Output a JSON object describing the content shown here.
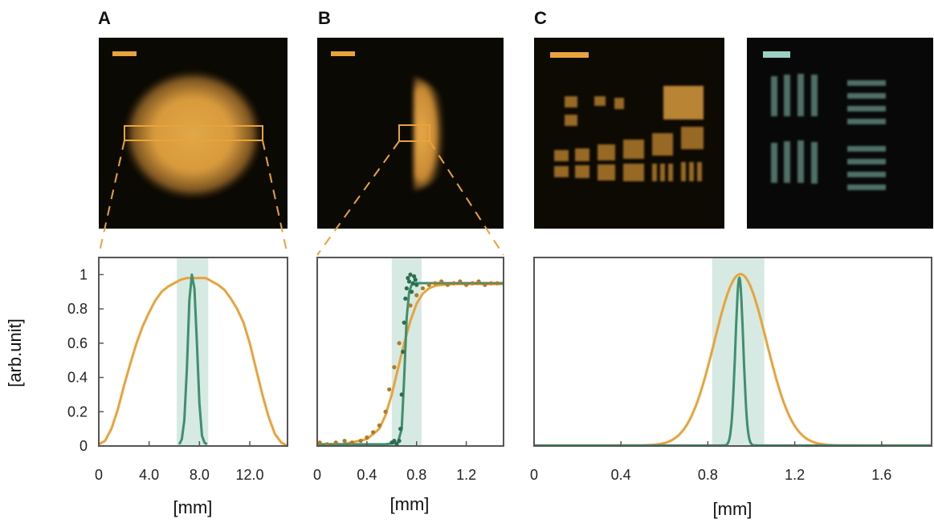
{
  "panel_labels": [
    "A",
    "B",
    "C"
  ],
  "colors": {
    "orange": "#E8A33A",
    "green": "#3F8F6E",
    "band": "#D6E9E2",
    "dark_green": "#2B6E50",
    "dots_orange": "#B07A2A",
    "frame": "#555555"
  },
  "chart_data": [
    {
      "type": "line",
      "panel": "A",
      "xlabel": "[mm]",
      "ylabel": "[arb.unit]",
      "xlim": [
        0,
        15
      ],
      "ylim": [
        0,
        1.1
      ],
      "xticks": [
        0,
        4,
        8,
        12
      ],
      "xtick_labels": [
        "0",
        "4.0",
        "8.0",
        "12.0"
      ],
      "yticks": [
        0,
        0.2,
        0.4,
        0.6,
        0.8,
        1
      ],
      "ytick_labels": [
        "0",
        "0.2",
        "0.4",
        "0.6",
        "0.8",
        "1"
      ],
      "band": [
        6.2,
        8.7
      ],
      "series": [
        {
          "color": "#E8A33A",
          "x": [
            0,
            0.5,
            1,
            1.5,
            2,
            2.5,
            3,
            3.5,
            4,
            4.5,
            5,
            5.5,
            6,
            6.5,
            7,
            7.5,
            8,
            8.5,
            9,
            9.5,
            10,
            10.5,
            11,
            11.5,
            12,
            12.5,
            13,
            13.5,
            14,
            14.5,
            15
          ],
          "y": [
            0.01,
            0.03,
            0.1,
            0.21,
            0.35,
            0.48,
            0.6,
            0.7,
            0.78,
            0.85,
            0.9,
            0.93,
            0.95,
            0.97,
            0.98,
            0.98,
            0.98,
            0.98,
            0.96,
            0.94,
            0.91,
            0.86,
            0.8,
            0.72,
            0.6,
            0.45,
            0.3,
            0.17,
            0.07,
            0.02,
            0.0
          ]
        },
        {
          "color": "#3F8F6E",
          "x": [
            6.4,
            6.6,
            6.8,
            7.0,
            7.2,
            7.4,
            7.6,
            7.8,
            8.0,
            8.2,
            8.4,
            8.6
          ],
          "y": [
            0.01,
            0.04,
            0.15,
            0.45,
            0.85,
            1.0,
            0.92,
            0.6,
            0.25,
            0.06,
            0.02,
            0.01
          ]
        }
      ]
    },
    {
      "type": "line",
      "panel": "B",
      "xlabel": "[mm]",
      "xlim": [
        0,
        1.5
      ],
      "ylim": [
        0,
        1.1
      ],
      "xticks": [
        0,
        0.4,
        0.8,
        1.2
      ],
      "xtick_labels": [
        "0",
        "0.4",
        "0.8",
        "1.2"
      ],
      "band": [
        0.6,
        0.84
      ],
      "series": [
        {
          "color": "#E8A33A",
          "x": [
            0,
            0.2,
            0.4,
            0.5,
            0.55,
            0.6,
            0.65,
            0.7,
            0.75,
            0.8,
            0.85,
            0.9,
            0.95,
            1.0,
            1.1,
            1.2,
            1.3,
            1.5
          ],
          "y": [
            0.01,
            0.01,
            0.04,
            0.1,
            0.18,
            0.3,
            0.45,
            0.6,
            0.73,
            0.83,
            0.89,
            0.92,
            0.935,
            0.94,
            0.945,
            0.945,
            0.945,
            0.945
          ]
        },
        {
          "color": "#3F8F6E",
          "x": [
            0,
            0.55,
            0.65,
            0.68,
            0.7,
            0.72,
            0.74,
            0.76,
            0.8,
            1.0,
            1.5
          ],
          "y": [
            0.01,
            0.01,
            0.02,
            0.1,
            0.4,
            0.75,
            0.9,
            0.94,
            0.95,
            0.95,
            0.95
          ]
        }
      ],
      "scatter": [
        {
          "color": "#B07A2A",
          "x": [
            0.02,
            0.08,
            0.15,
            0.22,
            0.28,
            0.35,
            0.4,
            0.45,
            0.5,
            0.55,
            0.58,
            0.62,
            0.66,
            0.7,
            0.75,
            0.8,
            0.85,
            0.9,
            0.95,
            1.0,
            1.05,
            1.1,
            1.15,
            1.2,
            1.25,
            1.3,
            1.35,
            1.4,
            1.45
          ],
          "y": [
            0.02,
            0.01,
            0.02,
            0.03,
            0.02,
            0.03,
            0.05,
            0.08,
            0.12,
            0.2,
            0.33,
            0.46,
            0.6,
            0.72,
            0.82,
            0.88,
            0.92,
            0.94,
            0.95,
            0.96,
            0.94,
            0.95,
            0.96,
            0.94,
            0.95,
            0.96,
            0.94,
            0.95,
            0.95
          ]
        },
        {
          "color": "#2B6E50",
          "x": [
            0.6,
            0.62,
            0.64,
            0.66,
            0.67,
            0.68,
            0.69,
            0.7,
            0.71,
            0.72,
            0.73,
            0.74,
            0.75,
            0.76,
            0.77,
            0.78,
            0.79,
            0.8
          ],
          "y": [
            0.02,
            0.03,
            0.01,
            0.03,
            0.1,
            0.3,
            0.55,
            0.72,
            0.86,
            0.92,
            0.98,
            0.96,
            1.0,
            0.9,
            0.95,
            0.99,
            0.97,
            0.94
          ]
        }
      ]
    },
    {
      "type": "line",
      "panel": "C",
      "xlabel": "[mm]",
      "xlim": [
        0,
        1.83
      ],
      "ylim": [
        0,
        1.1
      ],
      "xticks": [
        0,
        0.4,
        0.8,
        1.2,
        1.6
      ],
      "xtick_labels": [
        "0",
        "0.4",
        "0.8",
        "1.2",
        "1.6"
      ],
      "band": [
        0.82,
        1.06
      ],
      "series": [
        {
          "color": "#E8A33A",
          "gaussian": {
            "mu": 0.95,
            "sigma": 0.12,
            "amp": 1.0
          }
        },
        {
          "color": "#3F8F6E",
          "gaussian": {
            "mu": 0.945,
            "sigma": 0.018,
            "amp": 0.98
          }
        }
      ]
    }
  ]
}
